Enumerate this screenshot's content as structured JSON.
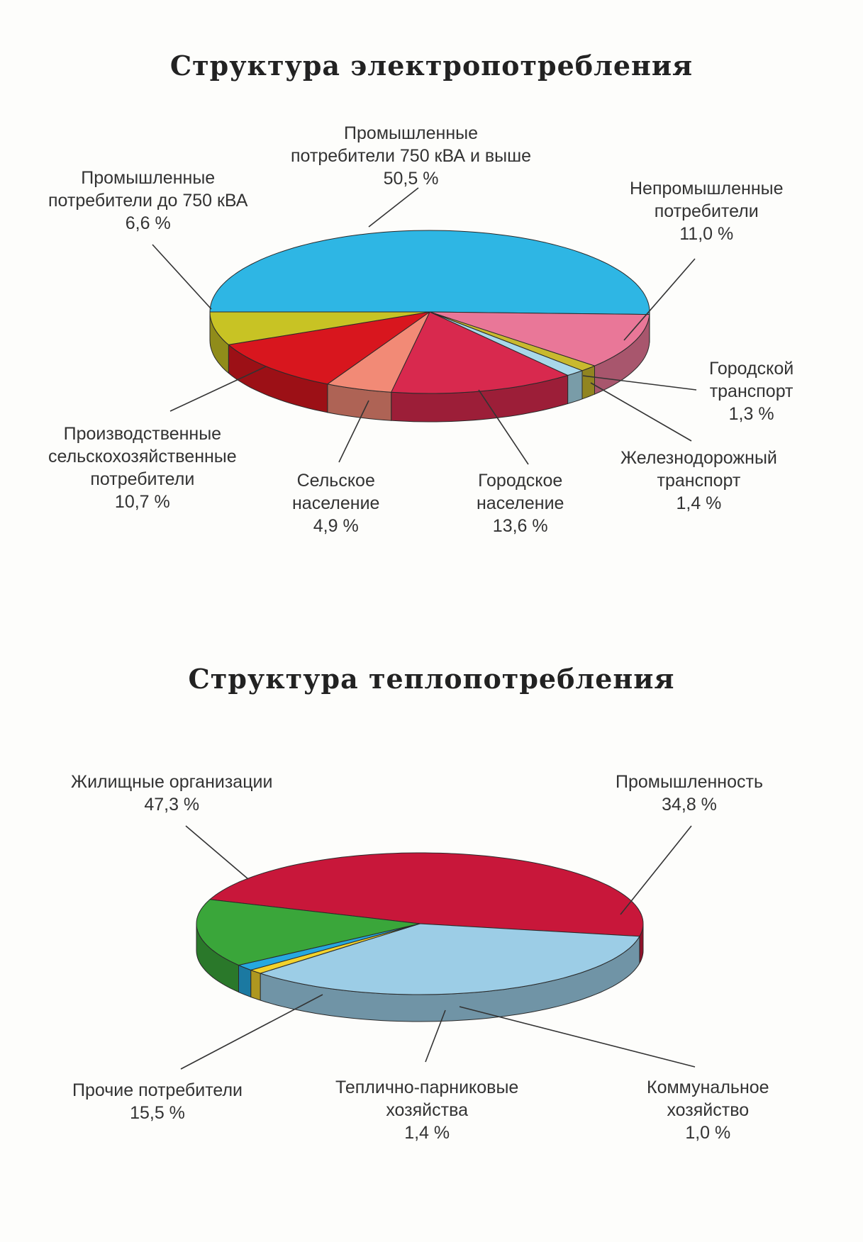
{
  "chart_data": [
    {
      "type": "pie",
      "title": "Структура электропотребления",
      "slices": [
        {
          "label": [
            "Промышленные",
            "потребители 750 кВА и выше"
          ],
          "value": 50.5,
          "value_text": "50,5 %",
          "color": "#2eb6e4"
        },
        {
          "label": [
            "Непромышленные",
            "потребители"
          ],
          "value": 11.0,
          "value_text": "11,0 %",
          "color": "#e97798"
        },
        {
          "label": [
            "Городской",
            "транспорт"
          ],
          "value": 1.3,
          "value_text": "1,3 %",
          "color": "#c9b92e"
        },
        {
          "label": [
            "Железнодорожный",
            "транспорт"
          ],
          "value": 1.4,
          "value_text": "1,4 %",
          "color": "#a8d8ea"
        },
        {
          "label": [
            "Городское",
            "население"
          ],
          "value": 13.6,
          "value_text": "13,6 %",
          "color": "#d8294e"
        },
        {
          "label": [
            "Сельское",
            "население"
          ],
          "value": 4.9,
          "value_text": "4,9 %",
          "color": "#f28a76"
        },
        {
          "label": [
            "Производственные",
            "сельскохозяйственные",
            "потребители"
          ],
          "value": 10.7,
          "value_text": "10,7 %",
          "color": "#d8161e"
        },
        {
          "label": [
            "Промышленные",
            "потребители до 750 кВА"
          ],
          "value": 6.6,
          "value_text": "6,6 %",
          "color": "#c8c324"
        }
      ]
    },
    {
      "type": "pie",
      "title": "Структура теплопотребления",
      "slices": [
        {
          "label": [
            "Жилищные организации"
          ],
          "value": 47.3,
          "value_text": "47,3 %",
          "color": "#c8173a"
        },
        {
          "label": [
            "Промышленность"
          ],
          "value": 34.8,
          "value_text": "34,8 %",
          "color": "#9ccde6"
        },
        {
          "label": [
            "Коммунальное",
            "хозяйство"
          ],
          "value": 1.0,
          "value_text": "1,0 %",
          "color": "#f2d22c"
        },
        {
          "label": [
            "Теплично-парниковые",
            "хозяйства"
          ],
          "value": 1.4,
          "value_text": "1,4 %",
          "color": "#26a8e0"
        },
        {
          "label": [
            "Прочие потребители"
          ],
          "value": 15.5,
          "value_text": "15,5 %",
          "color": "#3aa63a"
        }
      ]
    }
  ]
}
